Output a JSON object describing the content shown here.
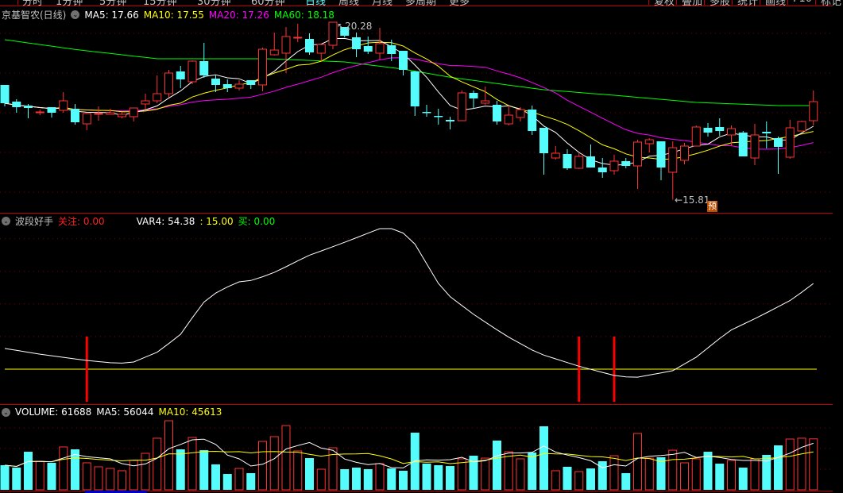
{
  "toolbar": {
    "periods": [
      "分时",
      "1分钟",
      "5分钟",
      "15分钟",
      "30分钟",
      "60分钟",
      "日线",
      "周线",
      "月线",
      "多周期",
      "更多"
    ],
    "active_period": "日线",
    "right_buttons": [
      "复权",
      "叠加",
      "多股",
      "统计",
      "画线",
      "F10",
      "标记"
    ]
  },
  "main_panel": {
    "title": "京基智农(日线)",
    "ma5_label": "MA5: 17.66",
    "ma10_label": "MA10: 17.55",
    "ma20_label": "MA20: 17.26",
    "ma60_label": "MA60: 18.18",
    "high_marker": "20.28",
    "low_marker": "15.81",
    "forecast_badge": "预"
  },
  "indicator_panel": {
    "title": "波段好手",
    "watch_label": "关注: 0.00",
    "var4_label": "VAR4: 54.38",
    "level_label": ": 15.00",
    "buy_label": "买: 0.00"
  },
  "volume_panel": {
    "volume_label": "VOLUME: 61688",
    "ma5_label": "MA5: 56044",
    "ma10_label": "MA10: 45613"
  },
  "colors": {
    "up": "#ff3232",
    "down": "#54fcfc",
    "ma5": "#ffffff",
    "ma10": "#ffff00",
    "ma20": "#ff00ff",
    "ma60": "#00ff00",
    "grid": "#800000",
    "separator": "#c00000"
  },
  "chart_data": {
    "type": "candlestick",
    "price_gridlines": [
      16,
      17,
      18,
      19,
      20
    ],
    "ohlc": [
      [
        18.7,
        18.24,
        18.7,
        18.16
      ],
      [
        18.28,
        18.14,
        18.34,
        18.0
      ],
      [
        18.18,
        18.12,
        18.22,
        17.86
      ],
      [
        18.0,
        18.02,
        18.08,
        17.94
      ],
      [
        18.14,
        18.0,
        18.14,
        17.88
      ],
      [
        18.06,
        18.3,
        18.52,
        18.0
      ],
      [
        18.1,
        17.76,
        18.22,
        17.7
      ],
      [
        17.72,
        17.98,
        17.98,
        17.56
      ],
      [
        17.96,
        17.98,
        18.16,
        17.8
      ],
      [
        17.96,
        18.0,
        18.1,
        17.96
      ],
      [
        17.9,
        17.96,
        18.02,
        17.86
      ],
      [
        17.9,
        18.12,
        18.12,
        17.78
      ],
      [
        18.22,
        18.3,
        18.48,
        18.08
      ],
      [
        18.3,
        18.48,
        18.94,
        18.24
      ],
      [
        18.48,
        19.0,
        19.08,
        18.38
      ],
      [
        19.04,
        18.84,
        19.18,
        18.62
      ],
      [
        18.78,
        19.3,
        19.32,
        18.72
      ],
      [
        19.3,
        18.94,
        19.76,
        18.88
      ],
      [
        18.86,
        18.7,
        18.96,
        18.52
      ],
      [
        18.72,
        18.62,
        18.84,
        18.52
      ],
      [
        18.62,
        18.72,
        18.82,
        18.56
      ],
      [
        18.82,
        18.7,
        18.82,
        18.6
      ],
      [
        18.7,
        19.6,
        19.64,
        18.54
      ],
      [
        19.46,
        19.58,
        20.02,
        19.44
      ],
      [
        19.5,
        19.92,
        20.16,
        19.0
      ],
      [
        19.88,
        19.9,
        20.24,
        19.78
      ],
      [
        19.86,
        19.52,
        20.0,
        19.46
      ],
      [
        19.5,
        19.72,
        19.72,
        19.3
      ],
      [
        19.7,
        20.28,
        20.28,
        19.6
      ],
      [
        20.16,
        19.94,
        20.16,
        19.9
      ],
      [
        19.9,
        19.6,
        20.02,
        19.4
      ],
      [
        19.68,
        19.54,
        19.92,
        19.48
      ],
      [
        19.5,
        19.74,
        20.14,
        19.34
      ],
      [
        19.7,
        19.48,
        19.84,
        19.3
      ],
      [
        19.56,
        19.08,
        19.56,
        18.94
      ],
      [
        19.04,
        18.16,
        19.04,
        17.92
      ],
      [
        18.02,
        18.0,
        18.2,
        17.9
      ],
      [
        17.92,
        17.9,
        18.1,
        17.7
      ],
      [
        17.82,
        17.78,
        17.9,
        17.58
      ],
      [
        17.8,
        18.5,
        18.56,
        17.8
      ],
      [
        18.5,
        18.36,
        18.56,
        18.1
      ],
      [
        18.24,
        18.3,
        18.66,
        18.2
      ],
      [
        18.2,
        17.78,
        18.3,
        17.7
      ],
      [
        17.72,
        17.94,
        18.18,
        17.68
      ],
      [
        17.88,
        18.08,
        18.14,
        17.78
      ],
      [
        18.08,
        17.54,
        18.18,
        17.44
      ],
      [
        17.62,
        16.98,
        17.62,
        16.44
      ],
      [
        16.86,
        16.98,
        17.16,
        16.82
      ],
      [
        16.96,
        16.6,
        17.08,
        16.56
      ],
      [
        16.6,
        16.9,
        16.98,
        16.58
      ],
      [
        16.9,
        16.62,
        17.2,
        16.62
      ],
      [
        16.62,
        16.5,
        16.86,
        16.36
      ],
      [
        16.54,
        16.78,
        16.94,
        16.44
      ],
      [
        16.78,
        16.66,
        16.86,
        16.6
      ],
      [
        16.66,
        17.26,
        17.32,
        16.08
      ],
      [
        17.22,
        17.32,
        17.36,
        17.0
      ],
      [
        17.28,
        16.62,
        17.28,
        16.3
      ],
      [
        16.5,
        17.12,
        17.28,
        15.81
      ],
      [
        16.8,
        17.16,
        17.24,
        16.7
      ],
      [
        17.16,
        17.64,
        17.68,
        17.16
      ],
      [
        17.62,
        17.5,
        17.74,
        17.4
      ],
      [
        17.64,
        17.54,
        17.86,
        17.42
      ],
      [
        17.44,
        17.6,
        17.68,
        17.18
      ],
      [
        17.5,
        16.9,
        17.54,
        16.9
      ],
      [
        16.86,
        17.44,
        17.72,
        16.68
      ],
      [
        17.52,
        17.48,
        17.78,
        17.1
      ],
      [
        17.36,
        17.14,
        17.4,
        16.46
      ],
      [
        16.88,
        17.62,
        17.82,
        16.84
      ],
      [
        17.54,
        17.78,
        17.8,
        17.54
      ],
      [
        17.8,
        18.28,
        18.56,
        17.68
      ]
    ],
    "ma60_knots": [
      [
        0,
        19.84
      ],
      [
        6.4,
        19.58
      ],
      [
        13,
        19.36
      ],
      [
        22.6,
        19.36
      ],
      [
        29,
        19.28
      ],
      [
        34,
        19.1
      ],
      [
        38.3,
        18.88
      ],
      [
        46,
        18.58
      ],
      [
        52,
        18.44
      ],
      [
        59,
        18.26
      ],
      [
        66,
        18.18
      ],
      [
        69,
        18.18
      ]
    ],
    "volume": [
      29800,
      26900,
      46100,
      34600,
      32700,
      51900,
      49000,
      32700,
      27900,
      25900,
      23100,
      35600,
      44200,
      62500,
      83600,
      49000,
      63400,
      48000,
      30800,
      19200,
      25900,
      20200,
      58600,
      64400,
      77800,
      47100,
      38400,
      25000,
      50900,
      25000,
      26900,
      25000,
      31700,
      25900,
      23100,
      69200,
      31700,
      29800,
      28800,
      37500,
      41300,
      38400,
      59600,
      46100,
      37500,
      45200,
      76900,
      23100,
      27900,
      22100,
      25900,
      34600,
      41300,
      20200,
      68200,
      38400,
      39400,
      48000,
      32700,
      37500,
      46100,
      31700,
      35600,
      26900,
      37500,
      42300,
      53800,
      61500,
      62500,
      61688
    ],
    "volume_gridlines": [
      25000,
      50000,
      75000
    ],
    "var4_knots": [
      [
        0,
        24.5
      ],
      [
        3,
        21.9
      ],
      [
        7,
        19.0
      ],
      [
        9.7,
        17.6
      ],
      [
        11,
        18.3
      ],
      [
        13.1,
        23
      ],
      [
        15.1,
        31.4
      ],
      [
        16.8,
        45
      ],
      [
        18.2,
        50.8
      ],
      [
        19.9,
        55.1
      ],
      [
        21.2,
        55.9
      ],
      [
        23.2,
        59.9
      ],
      [
        25.9,
        67.2
      ],
      [
        28.7,
        72.7
      ],
      [
        32,
        79.6
      ],
      [
        33.4,
        79.6
      ],
      [
        34.7,
        75.2
      ],
      [
        37.4,
        50.8
      ],
      [
        40.1,
        39.8
      ],
      [
        42.8,
        30.3
      ],
      [
        45.5,
        22.3
      ],
      [
        48.9,
        16.5
      ],
      [
        52,
        12.1
      ],
      [
        53.7,
        11
      ],
      [
        57,
        14.3
      ],
      [
        59,
        20.5
      ],
      [
        61.8,
        32.5
      ],
      [
        64.5,
        39.5
      ],
      [
        67.2,
        47.1
      ],
      [
        69,
        54.38
      ]
    ],
    "var4_level": 15,
    "indicator_gridlines": [
      30,
      45,
      60,
      75
    ],
    "signal_bars": {
      "indices": [
        7,
        49,
        52
      ],
      "from": 0,
      "to": 30
    }
  }
}
